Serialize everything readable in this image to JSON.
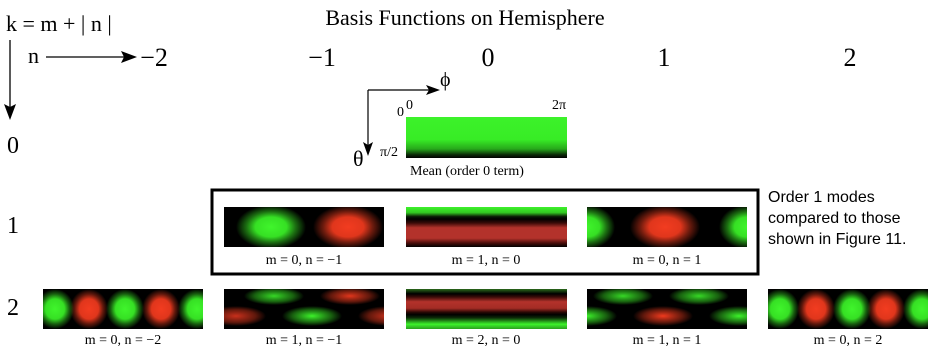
{
  "title": "Basis Functions on Hemisphere",
  "formula": "k = m + | n |",
  "n_axis_label": "n",
  "columns": [
    "−2",
    "−1",
    "0",
    "1",
    "2"
  ],
  "rows": [
    "0",
    "1",
    "2"
  ],
  "phi_label": "ϕ",
  "theta_label": "θ",
  "range": {
    "zero": "0",
    "two_pi": "2π",
    "half_pi": "π/2"
  },
  "mean_caption": "Mean (order 0 term)",
  "order1_captions": [
    "m = 0, n = −1",
    "m = 1, n = 0",
    "m = 0, n = 1"
  ],
  "order2_captions": [
    "m = 0, n = −2",
    "m = 1, n = −1",
    "m = 2, n = 0",
    "m = 1, n = 1",
    "m = 0, n = 2"
  ],
  "note": "Order 1 modes compared to those shown in Figure 11.",
  "colors": {
    "green": "#3cf22a",
    "red": "#f03a1e",
    "dark_red": "#b3322b",
    "black": "#000000"
  }
}
